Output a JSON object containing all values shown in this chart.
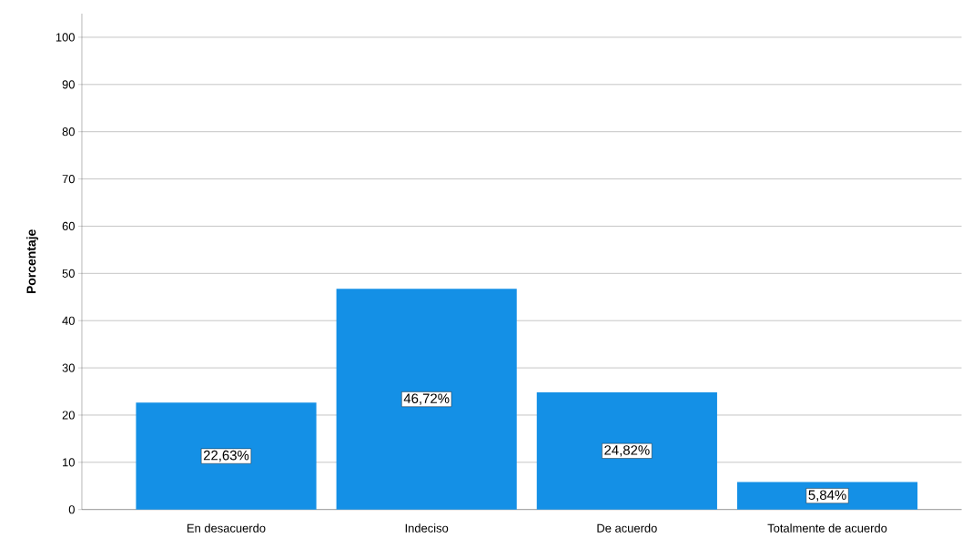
{
  "chart_data": {
    "type": "bar",
    "ylabel": "Porcentaje",
    "categories": [
      "En desacuerdo",
      "Indeciso",
      "De acuerdo",
      "Totalmente de acuerdo"
    ],
    "values": [
      22.63,
      46.72,
      24.82,
      5.84
    ],
    "value_labels": [
      "22,63%",
      "46,72%",
      "24,82%",
      "5,84%"
    ],
    "color": "#1490e6",
    "ylim": [
      0,
      105
    ],
    "yticks": [
      0,
      10,
      20,
      30,
      40,
      50,
      60,
      70,
      80,
      90,
      100
    ],
    "grid": "y"
  }
}
